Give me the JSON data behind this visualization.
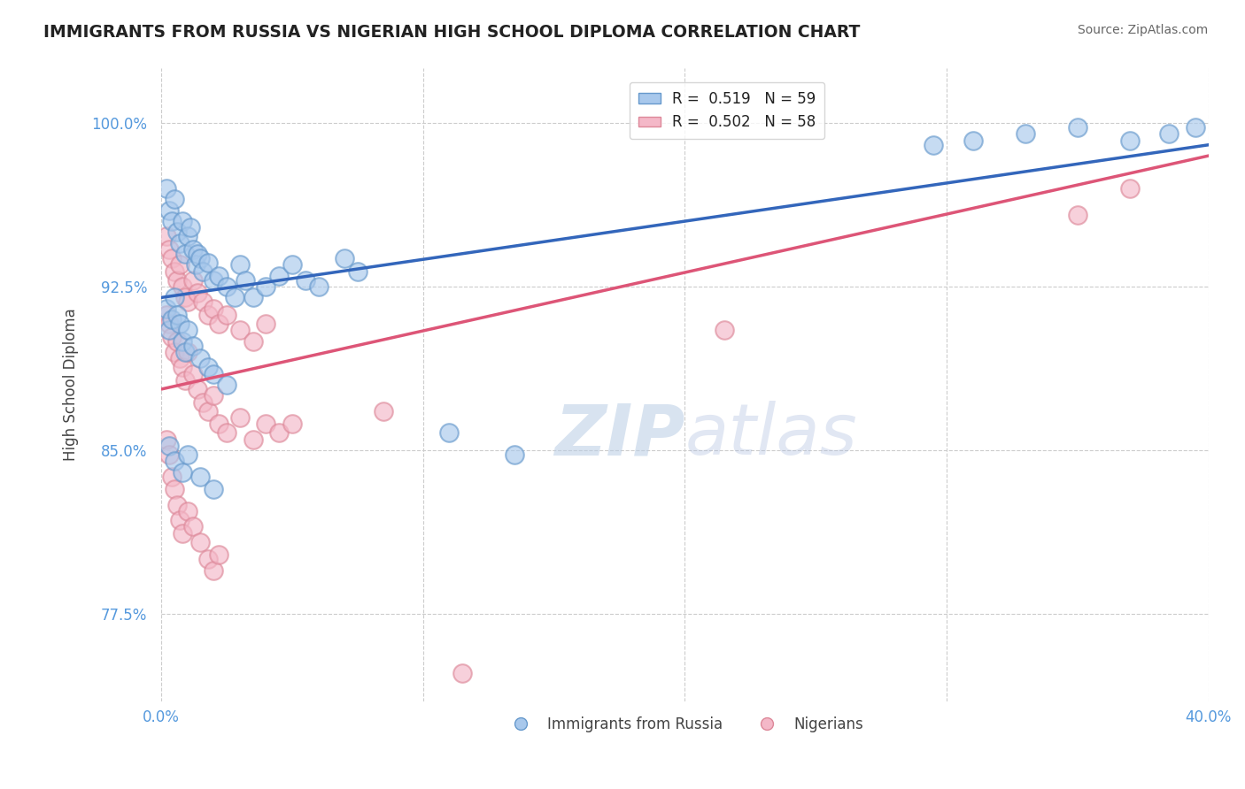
{
  "title": "IMMIGRANTS FROM RUSSIA VS NIGERIAN HIGH SCHOOL DIPLOMA CORRELATION CHART",
  "source": "Source: ZipAtlas.com",
  "ylabel": "High School Diploma",
  "ytick_values": [
    0.775,
    0.85,
    0.925,
    1.0
  ],
  "xlim": [
    0.0,
    0.4
  ],
  "ylim": [
    0.735,
    1.025
  ],
  "blue_color": "#A8C8EC",
  "pink_color": "#F4B8C8",
  "blue_edge": "#6699CC",
  "pink_edge": "#DD8899",
  "trend_blue": "#3366BB",
  "trend_pink": "#DD5577",
  "watermark_zip": "ZIP",
  "watermark_atlas": "atlas",
  "background_color": "#FFFFFF",
  "grid_color": "#CCCCCC",
  "axis_label_color": "#5599DD",
  "title_color": "#222222",
  "blue_points": [
    [
      0.002,
      0.97
    ],
    [
      0.003,
      0.96
    ],
    [
      0.004,
      0.955
    ],
    [
      0.005,
      0.965
    ],
    [
      0.006,
      0.95
    ],
    [
      0.007,
      0.945
    ],
    [
      0.008,
      0.955
    ],
    [
      0.009,
      0.94
    ],
    [
      0.01,
      0.948
    ],
    [
      0.011,
      0.952
    ],
    [
      0.012,
      0.942
    ],
    [
      0.013,
      0.935
    ],
    [
      0.014,
      0.94
    ],
    [
      0.015,
      0.938
    ],
    [
      0.016,
      0.932
    ],
    [
      0.018,
      0.936
    ],
    [
      0.02,
      0.928
    ],
    [
      0.022,
      0.93
    ],
    [
      0.025,
      0.925
    ],
    [
      0.028,
      0.92
    ],
    [
      0.03,
      0.935
    ],
    [
      0.032,
      0.928
    ],
    [
      0.035,
      0.92
    ],
    [
      0.04,
      0.925
    ],
    [
      0.045,
      0.93
    ],
    [
      0.05,
      0.935
    ],
    [
      0.055,
      0.928
    ],
    [
      0.06,
      0.925
    ],
    [
      0.07,
      0.938
    ],
    [
      0.075,
      0.932
    ],
    [
      0.002,
      0.915
    ],
    [
      0.003,
      0.905
    ],
    [
      0.004,
      0.91
    ],
    [
      0.005,
      0.92
    ],
    [
      0.006,
      0.912
    ],
    [
      0.007,
      0.908
    ],
    [
      0.008,
      0.9
    ],
    [
      0.009,
      0.895
    ],
    [
      0.01,
      0.905
    ],
    [
      0.012,
      0.898
    ],
    [
      0.015,
      0.892
    ],
    [
      0.018,
      0.888
    ],
    [
      0.02,
      0.885
    ],
    [
      0.025,
      0.88
    ],
    [
      0.003,
      0.852
    ],
    [
      0.005,
      0.845
    ],
    [
      0.008,
      0.84
    ],
    [
      0.01,
      0.848
    ],
    [
      0.015,
      0.838
    ],
    [
      0.02,
      0.832
    ],
    [
      0.11,
      0.858
    ],
    [
      0.135,
      0.848
    ],
    [
      0.295,
      0.99
    ],
    [
      0.31,
      0.992
    ],
    [
      0.33,
      0.995
    ],
    [
      0.35,
      0.998
    ],
    [
      0.37,
      0.992
    ],
    [
      0.385,
      0.995
    ],
    [
      0.395,
      0.998
    ]
  ],
  "pink_points": [
    [
      0.002,
      0.948
    ],
    [
      0.003,
      0.942
    ],
    [
      0.004,
      0.938
    ],
    [
      0.005,
      0.932
    ],
    [
      0.006,
      0.928
    ],
    [
      0.007,
      0.935
    ],
    [
      0.008,
      0.925
    ],
    [
      0.009,
      0.92
    ],
    [
      0.01,
      0.918
    ],
    [
      0.012,
      0.928
    ],
    [
      0.014,
      0.922
    ],
    [
      0.016,
      0.918
    ],
    [
      0.018,
      0.912
    ],
    [
      0.02,
      0.915
    ],
    [
      0.022,
      0.908
    ],
    [
      0.025,
      0.912
    ],
    [
      0.03,
      0.905
    ],
    [
      0.035,
      0.9
    ],
    [
      0.04,
      0.908
    ],
    [
      0.002,
      0.912
    ],
    [
      0.003,
      0.908
    ],
    [
      0.004,
      0.902
    ],
    [
      0.005,
      0.895
    ],
    [
      0.006,
      0.9
    ],
    [
      0.007,
      0.892
    ],
    [
      0.008,
      0.888
    ],
    [
      0.009,
      0.882
    ],
    [
      0.01,
      0.895
    ],
    [
      0.012,
      0.885
    ],
    [
      0.014,
      0.878
    ],
    [
      0.016,
      0.872
    ],
    [
      0.018,
      0.868
    ],
    [
      0.02,
      0.875
    ],
    [
      0.022,
      0.862
    ],
    [
      0.025,
      0.858
    ],
    [
      0.03,
      0.865
    ],
    [
      0.035,
      0.855
    ],
    [
      0.04,
      0.862
    ],
    [
      0.045,
      0.858
    ],
    [
      0.05,
      0.862
    ],
    [
      0.002,
      0.855
    ],
    [
      0.003,
      0.848
    ],
    [
      0.004,
      0.838
    ],
    [
      0.005,
      0.832
    ],
    [
      0.006,
      0.825
    ],
    [
      0.007,
      0.818
    ],
    [
      0.008,
      0.812
    ],
    [
      0.01,
      0.822
    ],
    [
      0.012,
      0.815
    ],
    [
      0.015,
      0.808
    ],
    [
      0.018,
      0.8
    ],
    [
      0.02,
      0.795
    ],
    [
      0.022,
      0.802
    ],
    [
      0.085,
      0.868
    ],
    [
      0.215,
      0.905
    ],
    [
      0.35,
      0.958
    ],
    [
      0.37,
      0.97
    ],
    [
      0.115,
      0.748
    ]
  ],
  "legend_R_blue": "R =  0.519   N = 59",
  "legend_R_pink": "R =  0.502   N = 58",
  "legend_bottom_blue": "Immigrants from Russia",
  "legend_bottom_pink": "Nigerians"
}
